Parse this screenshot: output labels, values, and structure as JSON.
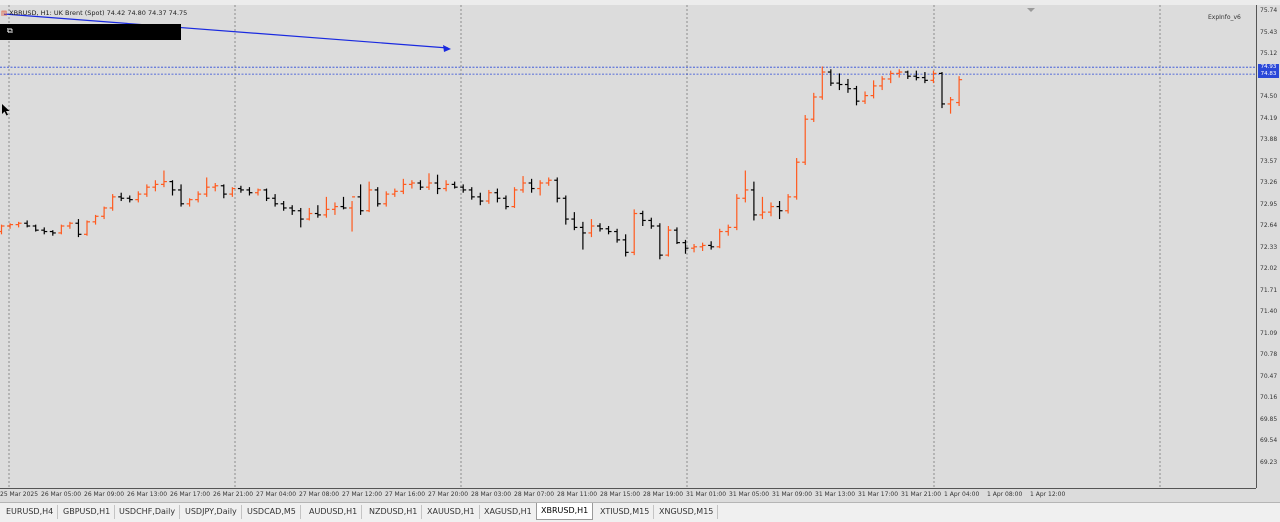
{
  "chart": {
    "title_symbol": "XBRUSD, H1:",
    "title_name": "UK Brent (Spot)",
    "title_ohlc": "74.42 74.80 74.37 74.75",
    "indicator_label": "ExpInfo_v6",
    "colors": {
      "background": "#dcdcdc",
      "bull": "#ff5a1e",
      "bear": "#000000",
      "grid": "#7a7a7a",
      "price_line": "#2a48d8",
      "arrow": "#1a2ae0"
    },
    "price_ticks": [
      "75.74",
      "75.43",
      "75.12",
      "74.81",
      "74.50",
      "74.19",
      "73.88",
      "73.57",
      "73.26",
      "72.95",
      "72.64",
      "72.33",
      "72.02",
      "71.71",
      "71.40",
      "71.09",
      "70.78",
      "70.47",
      "70.16",
      "69.85",
      "69.54",
      "69.23"
    ],
    "price_tags": [
      "74.93",
      "74.83"
    ],
    "time_ticks": [
      "25 Mar 2025",
      "26 Mar 05:00",
      "26 Mar 09:00",
      "26 Mar 13:00",
      "26 Mar 17:00",
      "26 Mar 21:00",
      "27 Mar 04:00",
      "27 Mar 08:00",
      "27 Mar 12:00",
      "27 Mar 16:00",
      "27 Mar 20:00",
      "28 Mar 03:00",
      "28 Mar 07:00",
      "28 Mar 11:00",
      "28 Mar 15:00",
      "28 Mar 19:00",
      "31 Mar 01:00",
      "31 Mar 05:00",
      "31 Mar 09:00",
      "31 Mar 13:00",
      "31 Mar 17:00",
      "31 Mar 21:00",
      "1 Apr 04:00",
      "1 Apr 08:00",
      "1 Apr 12:00"
    ],
    "bars": [
      [
        72.56,
        72.66,
        72.52,
        72.64
      ],
      [
        72.64,
        72.68,
        72.6,
        72.66
      ],
      [
        72.66,
        72.7,
        72.62,
        72.68
      ],
      [
        72.68,
        72.72,
        72.62,
        72.64
      ],
      [
        72.64,
        72.66,
        72.56,
        72.58
      ],
      [
        72.58,
        72.62,
        72.52,
        72.56
      ],
      [
        72.56,
        72.58,
        72.5,
        72.54
      ],
      [
        72.54,
        72.66,
        72.52,
        72.64
      ],
      [
        72.64,
        72.7,
        72.6,
        72.68
      ],
      [
        72.68,
        72.74,
        72.48,
        72.52
      ],
      [
        72.52,
        72.72,
        72.5,
        72.7
      ],
      [
        72.7,
        72.8,
        72.66,
        72.78
      ],
      [
        72.78,
        72.92,
        72.74,
        72.9
      ],
      [
        72.9,
        73.1,
        72.86,
        73.06
      ],
      [
        73.06,
        73.12,
        73.0,
        73.04
      ],
      [
        73.04,
        73.08,
        72.98,
        73.02
      ],
      [
        73.02,
        73.14,
        72.98,
        73.1
      ],
      [
        73.1,
        73.24,
        73.06,
        73.2
      ],
      [
        73.2,
        73.3,
        73.14,
        73.24
      ],
      [
        73.24,
        73.44,
        73.2,
        73.28
      ],
      [
        73.28,
        73.3,
        73.08,
        73.16
      ],
      [
        73.16,
        73.24,
        72.92,
        72.96
      ],
      [
        72.96,
        73.04,
        72.92,
        73.02
      ],
      [
        73.02,
        73.14,
        72.98,
        73.1
      ],
      [
        73.1,
        73.34,
        73.06,
        73.2
      ],
      [
        73.2,
        73.26,
        73.14,
        73.22
      ],
      [
        73.22,
        73.24,
        73.04,
        73.1
      ],
      [
        73.1,
        73.2,
        73.06,
        73.18
      ],
      [
        73.18,
        73.22,
        73.12,
        73.16
      ],
      [
        73.16,
        73.2,
        73.08,
        73.12
      ],
      [
        73.12,
        73.18,
        73.08,
        73.16
      ],
      [
        73.16,
        73.18,
        73.0,
        73.04
      ],
      [
        73.04,
        73.1,
        72.92,
        72.96
      ],
      [
        72.96,
        73.0,
        72.86,
        72.9
      ],
      [
        72.9,
        72.94,
        72.8,
        72.86
      ],
      [
        72.86,
        72.9,
        72.62,
        72.74
      ],
      [
        72.74,
        72.9,
        72.72,
        72.82
      ],
      [
        72.82,
        72.94,
        72.76,
        72.8
      ],
      [
        72.8,
        73.06,
        72.76,
        72.88
      ],
      [
        72.88,
        72.98,
        72.8,
        72.92
      ],
      [
        72.92,
        73.06,
        72.88,
        72.9
      ],
      [
        72.9,
        73.0,
        72.56,
        73.06
      ],
      [
        73.06,
        73.24,
        72.8,
        72.86
      ],
      [
        72.86,
        73.28,
        72.84,
        73.16
      ],
      [
        73.16,
        73.2,
        72.92,
        72.96
      ],
      [
        72.96,
        73.14,
        72.92,
        73.1
      ],
      [
        73.1,
        73.18,
        73.06,
        73.14
      ],
      [
        73.14,
        73.32,
        73.1,
        73.24
      ],
      [
        73.24,
        73.3,
        73.18,
        73.26
      ],
      [
        73.26,
        73.3,
        73.16,
        73.2
      ],
      [
        73.2,
        73.4,
        73.16,
        73.26
      ],
      [
        73.26,
        73.38,
        73.1,
        73.18
      ],
      [
        73.18,
        73.3,
        73.14,
        73.24
      ],
      [
        73.24,
        73.28,
        73.18,
        73.2
      ],
      [
        73.2,
        73.24,
        73.12,
        73.16
      ],
      [
        73.16,
        73.2,
        73.02,
        73.06
      ],
      [
        73.06,
        73.12,
        72.94,
        73.0
      ],
      [
        73.0,
        73.16,
        72.96,
        73.12
      ],
      [
        73.12,
        73.18,
        72.98,
        73.04
      ],
      [
        73.04,
        73.08,
        72.88,
        72.92
      ],
      [
        72.92,
        73.2,
        72.9,
        73.16
      ],
      [
        73.16,
        73.36,
        73.12,
        73.26
      ],
      [
        73.26,
        73.32,
        73.12,
        73.18
      ],
      [
        73.18,
        73.3,
        73.08,
        73.26
      ],
      [
        73.26,
        73.34,
        73.22,
        73.3
      ],
      [
        73.3,
        73.34,
        72.98,
        73.04
      ],
      [
        73.04,
        73.08,
        72.66,
        72.74
      ],
      [
        72.74,
        72.84,
        72.58,
        72.62
      ],
      [
        72.62,
        72.7,
        72.3,
        72.54
      ],
      [
        72.54,
        72.74,
        72.48,
        72.64
      ],
      [
        72.64,
        72.68,
        72.56,
        72.6
      ],
      [
        72.6,
        72.64,
        72.52,
        72.56
      ],
      [
        72.56,
        72.6,
        72.4,
        72.44
      ],
      [
        72.44,
        72.52,
        72.2,
        72.26
      ],
      [
        72.26,
        72.88,
        72.22,
        72.82
      ],
      [
        72.82,
        72.86,
        72.64,
        72.72
      ],
      [
        72.72,
        72.76,
        72.6,
        72.64
      ],
      [
        72.64,
        72.68,
        72.16,
        72.22
      ],
      [
        72.22,
        72.64,
        72.2,
        72.58
      ],
      [
        72.58,
        72.62,
        72.38,
        72.4
      ],
      [
        72.4,
        72.44,
        72.24,
        72.32
      ],
      [
        72.32,
        72.38,
        72.26,
        72.34
      ],
      [
        72.34,
        72.4,
        72.28,
        72.36
      ],
      [
        72.36,
        72.42,
        72.3,
        72.34
      ],
      [
        72.34,
        72.6,
        72.32,
        72.56
      ],
      [
        72.56,
        72.66,
        72.5,
        72.62
      ],
      [
        72.62,
        73.1,
        72.58,
        73.04
      ],
      [
        73.04,
        73.44,
        72.98,
        73.16
      ],
      [
        73.16,
        73.28,
        72.72,
        72.8
      ],
      [
        72.8,
        73.06,
        72.74,
        72.84
      ],
      [
        72.84,
        72.98,
        72.78,
        72.92
      ],
      [
        72.92,
        73.0,
        72.74,
        72.86
      ],
      [
        72.86,
        73.1,
        72.82,
        73.06
      ],
      [
        73.06,
        73.62,
        73.02,
        73.56
      ],
      [
        73.56,
        74.24,
        73.52,
        74.18
      ],
      [
        74.18,
        74.56,
        74.14,
        74.5
      ],
      [
        74.5,
        74.94,
        74.46,
        74.86
      ],
      [
        74.86,
        74.9,
        74.66,
        74.7
      ],
      [
        74.7,
        74.84,
        74.6,
        74.68
      ],
      [
        74.68,
        74.76,
        74.56,
        74.62
      ],
      [
        74.62,
        74.66,
        74.38,
        74.44
      ],
      [
        74.44,
        74.58,
        74.4,
        74.52
      ],
      [
        74.52,
        74.74,
        74.48,
        74.66
      ],
      [
        74.66,
        74.8,
        74.6,
        74.76
      ],
      [
        74.76,
        74.88,
        74.7,
        74.84
      ],
      [
        74.84,
        74.9,
        74.78,
        74.86
      ],
      [
        74.86,
        74.88,
        74.76,
        74.8
      ],
      [
        74.8,
        74.88,
        74.74,
        74.78
      ],
      [
        74.78,
        74.86,
        74.7,
        74.74
      ],
      [
        74.74,
        74.88,
        74.7,
        74.84
      ],
      [
        74.84,
        74.86,
        74.34,
        74.4
      ],
      [
        74.4,
        74.5,
        74.26,
        74.46
      ],
      [
        74.42,
        74.8,
        74.37,
        74.75
      ]
    ]
  },
  "tabs": [
    {
      "label": "EURUSD,H4"
    },
    {
      "label": "GBPUSD,H1"
    },
    {
      "label": "USDCHF,Daily"
    },
    {
      "label": "USDJPY,Daily"
    },
    {
      "label": "USDCAD,M5"
    },
    {
      "label": "AUDUSD,H1"
    },
    {
      "label": "NZDUSD,H1"
    },
    {
      "label": "XAUUSD,H1"
    },
    {
      "label": "XAGUSD,H1"
    },
    {
      "label": "XBRUSD,H1",
      "active": true
    },
    {
      "label": "XTIUSD,M15"
    },
    {
      "label": "XNGUSD,M15"
    }
  ]
}
